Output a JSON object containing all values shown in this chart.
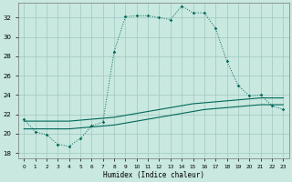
{
  "xlabel": "Humidex (Indice chaleur)",
  "xlim": [
    -0.5,
    23.5
  ],
  "ylim": [
    17.5,
    33.5
  ],
  "yticks": [
    18,
    20,
    22,
    24,
    26,
    28,
    30,
    32
  ],
  "xticks": [
    0,
    1,
    2,
    3,
    4,
    5,
    6,
    7,
    8,
    9,
    10,
    11,
    12,
    13,
    14,
    15,
    16,
    17,
    18,
    19,
    20,
    21,
    22,
    23
  ],
  "bg_color": "#c8e8e0",
  "grid_color": "#a0c8c0",
  "line_color": "#006858",
  "line1_x": [
    0,
    1,
    2,
    3,
    4,
    5,
    6,
    7,
    8,
    9,
    10,
    11,
    12,
    13,
    14,
    15,
    16,
    17,
    18,
    19,
    20,
    21,
    22,
    23
  ],
  "line1_y": [
    21.5,
    20.2,
    19.9,
    18.9,
    18.7,
    19.5,
    20.8,
    21.2,
    28.5,
    32.1,
    32.2,
    32.2,
    32.0,
    31.8,
    33.2,
    32.5,
    32.5,
    30.9,
    27.5,
    25.0,
    23.9,
    24.0,
    22.9,
    22.5
  ],
  "line2_x": [
    0,
    1,
    2,
    3,
    4,
    5,
    6,
    7,
    8,
    9,
    10,
    11,
    12,
    13,
    14,
    15,
    16,
    17,
    18,
    19,
    20,
    21,
    22,
    23
  ],
  "line2_y": [
    20.5,
    20.5,
    20.5,
    20.5,
    20.5,
    20.6,
    20.7,
    20.8,
    20.9,
    21.1,
    21.3,
    21.5,
    21.7,
    21.9,
    22.1,
    22.3,
    22.5,
    22.6,
    22.7,
    22.8,
    22.9,
    23.0,
    23.0,
    23.0
  ],
  "line3_x": [
    0,
    1,
    2,
    3,
    4,
    5,
    6,
    7,
    8,
    9,
    10,
    11,
    12,
    13,
    14,
    15,
    16,
    17,
    18,
    19,
    20,
    21,
    22,
    23
  ],
  "line3_y": [
    21.3,
    21.3,
    21.3,
    21.3,
    21.3,
    21.4,
    21.5,
    21.6,
    21.7,
    21.9,
    22.1,
    22.3,
    22.5,
    22.7,
    22.9,
    23.1,
    23.2,
    23.3,
    23.4,
    23.5,
    23.6,
    23.7,
    23.7,
    23.7
  ]
}
